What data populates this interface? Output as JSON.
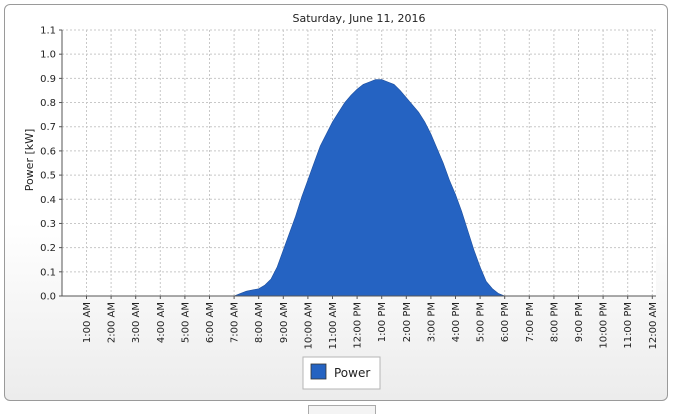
{
  "chart_data": {
    "type": "area",
    "title": "Saturday, June 11, 2016",
    "xlabel": "",
    "ylabel": "Power [kW]",
    "ylim": [
      0,
      1.1
    ],
    "yticks": [
      "0.0",
      "0.1",
      "0.2",
      "0.3",
      "0.4",
      "0.5",
      "0.6",
      "0.7",
      "0.8",
      "0.9",
      "1.0",
      "1.1"
    ],
    "categories": [
      "1:00 AM",
      "2:00 AM",
      "3:00 AM",
      "4:00 AM",
      "5:00 AM",
      "6:00 AM",
      "7:00 AM",
      "8:00 AM",
      "9:00 AM",
      "10:00 AM",
      "11:00 AM",
      "12:00 PM",
      "1:00 PM",
      "2:00 PM",
      "3:00 PM",
      "4:00 PM",
      "5:00 PM",
      "6:00 PM",
      "7:00 PM",
      "8:00 PM",
      "9:00 PM",
      "10:00 PM",
      "11:00 PM",
      "12:00 AM"
    ],
    "grid": true,
    "legend": "bottom",
    "series": [
      {
        "name": "Power",
        "color": "#2563c2",
        "x": [
          0,
          1,
          2,
          3,
          4,
          5,
          6,
          6.25,
          6.5,
          6.75,
          7,
          7.25,
          7.5,
          7.75,
          8,
          8.25,
          8.5,
          8.75,
          9,
          9.25,
          9.5,
          9.75,
          10,
          10.25,
          10.5,
          10.75,
          11,
          11.25,
          11.5,
          11.75,
          12,
          12.25,
          12.5,
          12.75,
          13,
          13.25,
          13.5,
          13.75,
          14,
          14.25,
          14.5,
          14.75,
          15,
          15.25,
          15.5,
          15.75,
          16,
          16.25,
          16.5,
          16.75,
          17,
          17.25,
          17.5,
          17.75,
          18,
          18.25,
          18.5,
          18.75,
          19,
          19.25,
          19.5,
          19.75,
          20,
          21,
          22,
          23
        ],
        "values": [
          0,
          0,
          0,
          0,
          0,
          0,
          0,
          0.01,
          0.02,
          0.025,
          0.03,
          0.045,
          0.07,
          0.12,
          0.19,
          0.26,
          0.33,
          0.41,
          0.48,
          0.55,
          0.62,
          0.67,
          0.72,
          0.76,
          0.8,
          0.83,
          0.855,
          0.875,
          0.885,
          0.895,
          0.895,
          0.885,
          0.875,
          0.85,
          0.82,
          0.79,
          0.76,
          0.72,
          0.67,
          0.61,
          0.55,
          0.48,
          0.42,
          0.35,
          0.27,
          0.19,
          0.12,
          0.06,
          0.03,
          0.01,
          0,
          0,
          0,
          0,
          0,
          0,
          0,
          0,
          0,
          0,
          0,
          0,
          0,
          0,
          0,
          0
        ]
      }
    ]
  }
}
